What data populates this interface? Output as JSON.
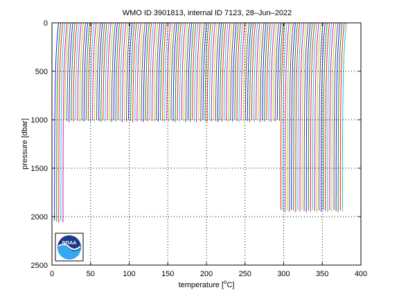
{
  "chart_data": {
    "type": "line",
    "title": "WMO ID 3901813, internal ID 7123, 28–Jun–2022",
    "xlabel": "temperature [°C]",
    "xlabel_parts": {
      "pre": "temperature [",
      "sup": "o",
      "post": "C]"
    },
    "ylabel": "pressure [dbar]",
    "xlim": [
      0,
      400
    ],
    "ylim": [
      0,
      2500
    ],
    "y_inverted": true,
    "x_ticks": [
      0,
      50,
      100,
      150,
      200,
      250,
      300,
      350,
      400
    ],
    "y_ticks": [
      0,
      500,
      1000,
      1500,
      2000,
      2500
    ],
    "grid": "dotted",
    "series_colors": [
      "#0000ff",
      "#008000",
      "#ff0000",
      "#00bfbf",
      "#bf00bf",
      "#bfbf00",
      "#404040"
    ],
    "profile_offset_step": 2.75,
    "profile_groups": [
      {
        "count": 5,
        "first_offset": 0,
        "surface_temp": 8.5,
        "deep_temp": 3.3,
        "max_pressure": 2040
      },
      {
        "count": 102,
        "first_offset": 13,
        "surface_temp": 8.5,
        "deep_temp": 3.3,
        "max_pressure": 1000
      },
      {
        "count": 30,
        "first_offset": 293,
        "surface_temp": 8.5,
        "deep_temp": 3.3,
        "max_pressure": 1930
      }
    ]
  },
  "logo": {
    "text": "NOAA"
  }
}
